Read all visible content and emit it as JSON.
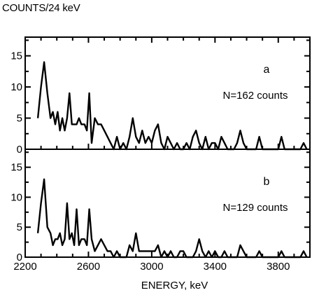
{
  "chart_data": {
    "type": "line",
    "ylabel": "COUNTS/24 keV",
    "xlabel": "ENERGY, keV",
    "xlim": [
      2200,
      4000
    ],
    "x_ticks": [
      2200,
      2600,
      3000,
      3400,
      3800
    ],
    "panels": [
      {
        "label": "a",
        "annotation": "N=162 counts",
        "ylim": [
          0,
          18
        ],
        "y_ticks": [
          0,
          5,
          10,
          15
        ],
        "series": [
          {
            "x": [
              2280,
              2300,
              2320,
              2340,
              2360,
              2375,
              2390,
              2405,
              2420,
              2435,
              2450,
              2465,
              2480,
              2495,
              2510,
              2525,
              2540,
              2555,
              2575,
              2590,
              2605,
              2620,
              2640,
              2660,
              2680,
              2700,
              2720,
              2740,
              2760,
              2780,
              2800,
              2820,
              2840,
              2860,
              2880,
              2900,
              2920,
              2940,
              2960,
              2980,
              3000,
              3020,
              3040,
              3060,
              3080,
              3100,
              3120,
              3140,
              3160,
              3180,
              3200,
              3220,
              3240,
              3260,
              3280,
              3300,
              3320,
              3340,
              3360,
              3380,
              3400,
              3420,
              3440,
              3460,
              3480,
              3500,
              3520,
              3540,
              3560,
              3580,
              3600,
              3620,
              3640,
              3660,
              3680,
              3700,
              3720,
              3740,
              3760,
              3780,
              3800,
              3820,
              3840,
              3860,
              3880,
              3900,
              3920,
              3940,
              3960,
              3980
            ],
            "y": [
              5,
              10,
              14,
              9,
              5,
              6,
              4,
              6,
              3,
              5,
              3,
              5,
              9,
              4,
              4,
              4,
              5,
              4,
              4,
              3,
              9,
              1,
              5,
              4,
              4,
              3,
              2,
              1,
              0,
              2,
              0,
              1,
              0,
              2,
              5,
              2,
              1,
              3,
              1,
              2,
              1,
              3,
              4,
              1,
              0,
              2,
              1,
              0,
              1,
              0,
              0,
              1,
              0,
              2,
              3,
              1,
              0,
              2,
              0,
              1,
              1,
              0,
              2,
              1,
              0,
              0,
              0,
              1,
              3,
              1,
              0,
              0,
              0,
              0,
              2,
              0,
              0,
              0,
              0,
              0,
              0,
              2,
              0,
              0,
              0,
              0,
              0,
              0,
              1,
              0
            ]
          }
        ]
      },
      {
        "label": "b",
        "annotation": "N=129 counts",
        "ylim": [
          0,
          18
        ],
        "y_ticks": [
          0,
          5,
          10,
          15
        ],
        "series": [
          {
            "x": [
              2280,
              2300,
              2320,
              2340,
              2360,
              2375,
              2390,
              2405,
              2420,
              2435,
              2450,
              2465,
              2480,
              2495,
              2510,
              2525,
              2540,
              2555,
              2575,
              2590,
              2605,
              2620,
              2640,
              2660,
              2680,
              2700,
              2720,
              2740,
              2760,
              2780,
              2800,
              2820,
              2840,
              2860,
              2880,
              2900,
              2920,
              2940,
              2960,
              2980,
              3000,
              3020,
              3040,
              3060,
              3080,
              3100,
              3120,
              3140,
              3160,
              3180,
              3200,
              3220,
              3240,
              3260,
              3280,
              3300,
              3320,
              3340,
              3360,
              3380,
              3400,
              3420,
              3440,
              3460,
              3480,
              3500,
              3520,
              3540,
              3560,
              3580,
              3600,
              3620,
              3640,
              3660,
              3680,
              3700,
              3720,
              3740,
              3760,
              3780,
              3800,
              3820,
              3840,
              3860,
              3880,
              3900,
              3920,
              3940,
              3960,
              3980
            ],
            "y": [
              4,
              9,
              13,
              5,
              4,
              2,
              3,
              3,
              4,
              2,
              3,
              9,
              3,
              4,
              2,
              8,
              2,
              3,
              3,
              2,
              8,
              3,
              1,
              2,
              3,
              2,
              1,
              1,
              0,
              1,
              0,
              0,
              0,
              2,
              1,
              4,
              1,
              1,
              1,
              1,
              1,
              1,
              2,
              0,
              1,
              0,
              1,
              0,
              0,
              1,
              1,
              0,
              0,
              0,
              1,
              3,
              1,
              0,
              1,
              0,
              1,
              0,
              0,
              1,
              0,
              0,
              0,
              0,
              2,
              1,
              0,
              0,
              0,
              0,
              1,
              0,
              0,
              0,
              0,
              0,
              0,
              1,
              0,
              0,
              0,
              0,
              0,
              0,
              1,
              0
            ]
          }
        ]
      }
    ]
  }
}
